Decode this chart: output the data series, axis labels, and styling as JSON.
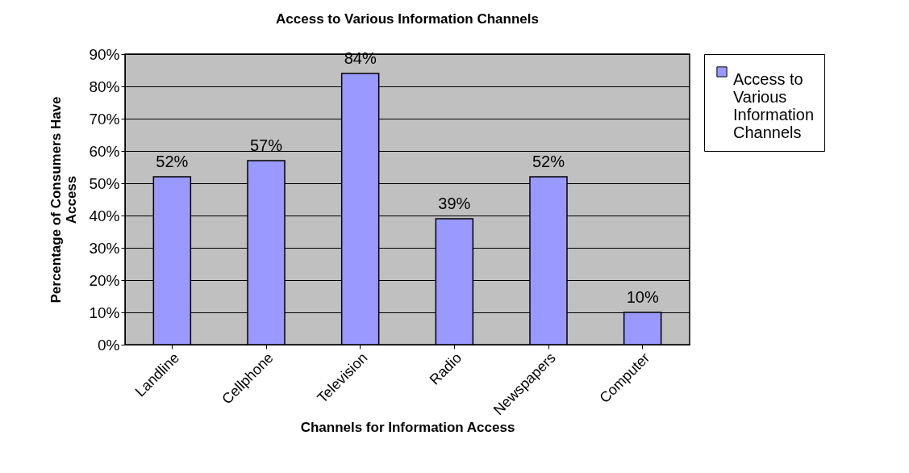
{
  "chart_data": {
    "type": "bar",
    "title": "Access to Various Information Channels",
    "xlabel": "Channels for Information Access",
    "ylabel": "Percentage of Consumers Have Access",
    "categories": [
      "Landline",
      "Cellphone",
      "Television",
      "Radio",
      "Newspapers",
      "Computer"
    ],
    "series": [
      {
        "name": "Access to Various Information Channels",
        "color": "#9999ff",
        "values": [
          52,
          57,
          84,
          39,
          52,
          10
        ],
        "value_labels": [
          "52%",
          "57%",
          "84%",
          "39%",
          "52%",
          "10%"
        ]
      }
    ],
    "ylim": [
      0,
      90
    ],
    "yticks": [
      {
        "value": 0,
        "label": "0%"
      },
      {
        "value": 10,
        "label": "10%"
      },
      {
        "value": 20,
        "label": "20%"
      },
      {
        "value": 30,
        "label": "30%"
      },
      {
        "value": 40,
        "label": "40%"
      },
      {
        "value": 50,
        "label": "50%"
      },
      {
        "value": 60,
        "label": "60%"
      },
      {
        "value": 70,
        "label": "70%"
      },
      {
        "value": 80,
        "label": "80%"
      },
      {
        "value": 90,
        "label": "90%"
      }
    ],
    "grid": "y",
    "legend": "right"
  }
}
